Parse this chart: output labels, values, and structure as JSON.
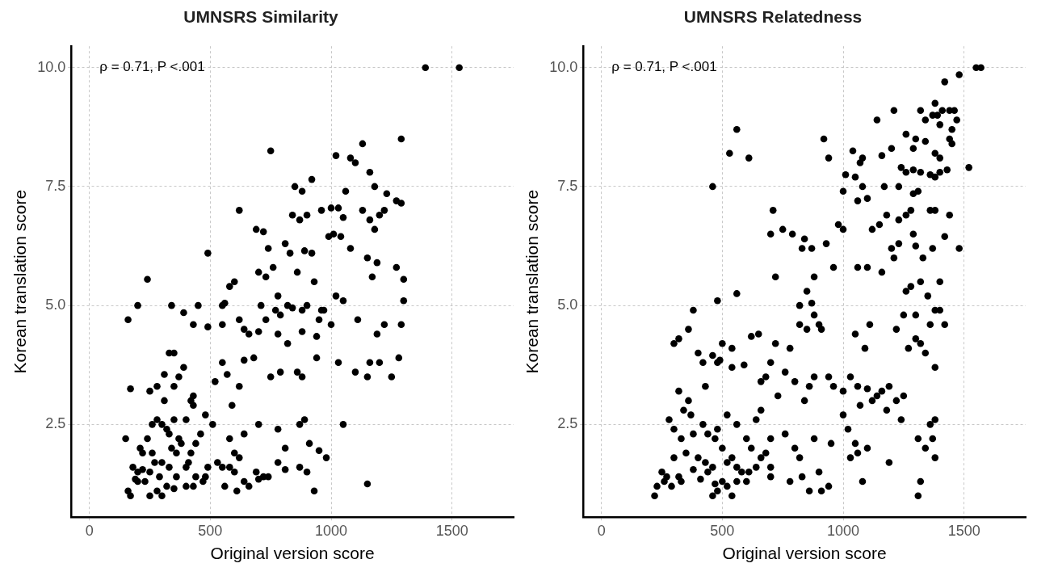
{
  "chart_data": [
    {
      "type": "scatter",
      "title": "UMNSRS Similarity",
      "xlabel": "Original version score",
      "ylabel": "Korean translation score",
      "annotations": [
        "ρ = 0.71, P <.001"
      ],
      "color": "#000000",
      "marker": "circle",
      "grid": true,
      "xlim": [
        -75,
        1755
      ],
      "ylim": [
        0.55,
        10.45
      ],
      "xticks": [
        0,
        500,
        1000,
        1500
      ],
      "yticks": [
        {
          "value": 2.5,
          "label": "2.5"
        },
        {
          "value": 5,
          "label": "5.0"
        },
        {
          "value": 7.5,
          "label": "7.5"
        },
        {
          "value": 10,
          "label": "10.0"
        }
      ],
      "x": [
        1390,
        1530,
        1290,
        1130,
        750,
        1020,
        1080,
        1100,
        1160,
        920,
        1060,
        1180,
        850,
        880,
        1230,
        1270,
        1290,
        1220,
        1130,
        1200,
        1160,
        1180,
        620,
        690,
        720,
        840,
        870,
        960,
        1000,
        1030,
        1050,
        1010,
        990,
        1040,
        900,
        810,
        830,
        890,
        920,
        490,
        1080,
        1150,
        1190,
        1170,
        1270,
        1300,
        580,
        600,
        700,
        730,
        760,
        740,
        860,
        930,
        780,
        820,
        840,
        880,
        900,
        960,
        970,
        1020,
        1050,
        1000,
        950,
        790,
        770,
        710,
        730,
        660,
        640,
        620,
        550,
        560,
        450,
        390,
        340,
        200,
        240,
        160,
        490,
        430,
        550,
        700,
        780,
        880,
        940,
        1110,
        1220,
        1290,
        1190,
        1300,
        1200,
        1250,
        1100,
        1150,
        1160,
        1280,
        1030,
        940,
        820,
        790,
        860,
        880,
        750,
        680,
        640,
        550,
        570,
        620,
        520,
        590,
        430,
        420,
        310,
        280,
        250,
        170,
        330,
        350,
        310,
        350,
        370,
        390,
        430,
        480,
        510,
        580,
        640,
        700,
        780,
        810,
        870,
        910,
        890,
        950,
        980,
        1050,
        870,
        900,
        600,
        620,
        530,
        550,
        580,
        600,
        690,
        720,
        780,
        810,
        700,
        740,
        490,
        480,
        470,
        560,
        610,
        640,
        660,
        400,
        430,
        930,
        1150,
        200,
        150,
        160,
        170,
        250,
        280,
        230,
        250,
        290,
        320,
        300,
        350,
        360,
        330,
        270,
        220,
        210,
        260,
        280,
        300,
        320,
        330,
        340,
        370,
        380,
        360,
        200,
        180,
        240,
        260,
        300,
        220,
        190,
        400,
        410,
        420,
        440,
        460,
        400,
        350,
        440
      ],
      "values": [
        10,
        10,
        8.5,
        8.4,
        8.25,
        8.15,
        8.1,
        8.0,
        7.8,
        7.65,
        7.4,
        7.5,
        7.5,
        7.4,
        7.35,
        7.2,
        7.15,
        7.0,
        7.0,
        6.9,
        6.8,
        6.6,
        7.0,
        6.6,
        6.55,
        6.9,
        6.8,
        7.0,
        7.05,
        7.05,
        6.85,
        6.5,
        6.45,
        6.45,
        6.9,
        6.3,
        6.1,
        6.15,
        6.1,
        6.1,
        6.2,
        6.0,
        5.9,
        5.6,
        5.8,
        5.55,
        5.4,
        5.5,
        5.7,
        5.6,
        5.8,
        6.2,
        5.7,
        5.5,
        5.2,
        5.0,
        4.95,
        4.9,
        5.0,
        4.9,
        4.9,
        5.2,
        5.1,
        4.6,
        4.7,
        4.8,
        4.9,
        5.0,
        4.7,
        4.4,
        4.5,
        4.7,
        5.0,
        5.05,
        5.0,
        4.85,
        5.0,
        5.0,
        5.55,
        4.7,
        4.55,
        4.6,
        4.6,
        4.45,
        4.4,
        4.45,
        4.35,
        4.7,
        4.6,
        4.6,
        4.4,
        5.1,
        3.8,
        3.5,
        3.6,
        3.5,
        3.8,
        3.9,
        3.8,
        3.9,
        4.2,
        3.6,
        3.6,
        3.5,
        3.5,
        3.9,
        3.85,
        3.8,
        3.55,
        3.3,
        3.4,
        2.9,
        3.1,
        3.0,
        3.0,
        3.3,
        3.2,
        3.25,
        4.0,
        4.0,
        3.55,
        3.3,
        3.5,
        3.7,
        2.9,
        2.7,
        2.5,
        2.2,
        2.3,
        2.5,
        2.4,
        2.0,
        2.5,
        2.1,
        2.6,
        1.95,
        1.8,
        2.5,
        1.6,
        1.5,
        1.9,
        1.8,
        1.7,
        1.6,
        1.6,
        1.5,
        1.5,
        1.4,
        1.7,
        1.55,
        1.35,
        1.4,
        1.6,
        1.4,
        1.3,
        1.2,
        1.1,
        1.3,
        1.2,
        1.2,
        1.2,
        1.1,
        1.25,
        1.3,
        2.2,
        1.1,
        1.0,
        1.0,
        1.1,
        1.3,
        1.5,
        1.4,
        1.2,
        1.0,
        1.15,
        1.4,
        1.6,
        1.7,
        1.9,
        2.0,
        2.5,
        2.6,
        2.5,
        2.4,
        2.3,
        2.0,
        2.2,
        2.1,
        1.9,
        1.5,
        1.6,
        2.2,
        1.9,
        1.7,
        1.55,
        1.35,
        1.6,
        1.7,
        1.9,
        2.1,
        2.3,
        2.6,
        2.6,
        1.4
      ]
    },
    {
      "type": "scatter",
      "title": "UMNSRS Relatedness",
      "xlabel": "Original version score",
      "ylabel": "Korean translation score",
      "annotations": [
        "ρ = 0.71, P <.001"
      ],
      "color": "#000000",
      "marker": "circle",
      "grid": true,
      "xlim": [
        -75,
        1755
      ],
      "ylim": [
        0.55,
        10.45
      ],
      "xticks": [
        0,
        500,
        1000,
        1500
      ],
      "yticks": [
        {
          "value": 2.5,
          "label": "2.5"
        },
        {
          "value": 5,
          "label": "5.0"
        },
        {
          "value": 7.5,
          "label": "7.5"
        },
        {
          "value": 10,
          "label": "10.0"
        }
      ],
      "x": [
        1550,
        1570,
        1480,
        1420,
        1380,
        1320,
        1370,
        1390,
        1410,
        1440,
        1460,
        1340,
        1400,
        1450,
        1440,
        1210,
        1140,
        1260,
        1300,
        1340,
        1290,
        1380,
        1400,
        1450,
        1470,
        1200,
        1160,
        1080,
        1070,
        1040,
        1010,
        1050,
        1240,
        1260,
        1290,
        1320,
        1360,
        1380,
        1400,
        1430,
        1520,
        1310,
        1290,
        1230,
        1170,
        1080,
        1100,
        1000,
        1060,
        1260,
        1280,
        1360,
        1380,
        1440,
        1230,
        1180,
        1150,
        1290,
        1230,
        1200,
        1370,
        1420,
        1300,
        1480,
        1120,
        1210,
        1330,
        1100,
        1060,
        1160,
        1280,
        1350,
        1260,
        1320,
        1400,
        1380,
        1300,
        1360,
        1250,
        1220,
        1110,
        1090,
        1050,
        1300,
        1320,
        1340,
        1380,
        1400,
        1420,
        1270,
        920,
        940,
        530,
        560,
        610,
        460,
        710,
        790,
        700,
        750,
        840,
        870,
        830,
        930,
        960,
        980,
        1000,
        720,
        560,
        480,
        380,
        500,
        540,
        620,
        650,
        590,
        700,
        720,
        780,
        760,
        820,
        850,
        900,
        910,
        880,
        870,
        880,
        850,
        820,
        300,
        320,
        360,
        400,
        420,
        460,
        490,
        430,
        480,
        540,
        660,
        680,
        730,
        800,
        840,
        860,
        880,
        940,
        960,
        1000,
        1030,
        1060,
        1100,
        1120,
        1140,
        1160,
        1070,
        1180,
        1220,
        1250,
        1240,
        1190,
        360,
        370,
        340,
        320,
        280,
        300,
        330,
        350,
        420,
        380,
        440,
        480,
        500,
        470,
        520,
        560,
        600,
        640,
        660,
        700,
        620,
        680,
        400,
        430,
        460,
        520,
        540,
        560,
        580,
        610,
        640,
        660,
        700,
        300,
        320,
        380,
        410,
        440,
        470,
        500,
        520,
        560,
        600,
        250,
        260,
        230,
        220,
        270,
        290,
        330,
        460,
        480,
        540,
        760,
        800,
        880,
        950,
        900,
        830,
        940,
        1050,
        1030,
        1080,
        1190,
        1060,
        1340,
        1370,
        1360,
        1380,
        1320,
        1310,
        1310,
        1380,
        860,
        910,
        780,
        820,
        700,
        1000,
        1020,
        1100
      ],
      "values": [
        10,
        10,
        9.85,
        9.7,
        9.25,
        9.1,
        9.0,
        9.0,
        9.1,
        9.1,
        9.1,
        8.9,
        8.8,
        8.7,
        8.5,
        9.1,
        8.9,
        8.6,
        8.5,
        8.45,
        8.3,
        8.2,
        8.1,
        8.4,
        8.9,
        8.3,
        8.15,
        8.1,
        8.0,
        8.25,
        7.75,
        7.7,
        7.9,
        7.8,
        7.85,
        7.8,
        7.75,
        7.7,
        7.8,
        7.85,
        7.9,
        7.4,
        7.35,
        7.5,
        7.5,
        7.5,
        7.25,
        7.4,
        7.2,
        6.9,
        7.0,
        7.0,
        7.0,
        6.9,
        6.8,
        6.9,
        6.7,
        6.5,
        6.3,
        6.2,
        6.2,
        6.45,
        6.25,
        6.2,
        6.6,
        6.0,
        6.0,
        5.8,
        5.8,
        5.7,
        5.4,
        5.2,
        5.3,
        5.5,
        5.5,
        4.9,
        4.8,
        4.6,
        4.8,
        4.5,
        4.6,
        4.1,
        4.4,
        4.3,
        4.2,
        4.0,
        3.7,
        4.9,
        4.6,
        4.1,
        8.5,
        8.1,
        8.2,
        8.7,
        8.1,
        7.5,
        7.0,
        6.5,
        6.5,
        6.6,
        6.4,
        6.2,
        6.2,
        6.3,
        5.8,
        6.7,
        6.6,
        5.6,
        5.25,
        5.1,
        4.9,
        4.2,
        4.1,
        4.35,
        4.4,
        3.75,
        3.8,
        4.2,
        4.1,
        3.6,
        4.6,
        4.5,
        4.6,
        4.5,
        4.8,
        5.05,
        5.6,
        5.3,
        5.0,
        4.2,
        4.3,
        4.5,
        4.0,
        3.8,
        3.95,
        3.85,
        3.3,
        3.8,
        3.7,
        3.4,
        3.5,
        3.1,
        3.4,
        3.0,
        3.3,
        3.5,
        3.5,
        3.3,
        3.2,
        3.5,
        3.3,
        3.25,
        3.0,
        3.1,
        3.2,
        2.9,
        2.8,
        3.0,
        3.1,
        2.6,
        3.3,
        3.0,
        2.7,
        2.8,
        3.2,
        2.6,
        2.4,
        2.2,
        1.9,
        2.5,
        2.3,
        2.3,
        2.4,
        2.0,
        2.2,
        2.7,
        2.5,
        2.2,
        2.6,
        2.8,
        2.2,
        2.0,
        1.9,
        1.8,
        1.7,
        1.6,
        1.7,
        1.8,
        1.6,
        1.5,
        1.5,
        1.6,
        1.8,
        1.6,
        1.8,
        1.4,
        1.55,
        1.35,
        1.5,
        1.25,
        1.3,
        1.2,
        1.3,
        1.3,
        1.5,
        1.3,
        1.2,
        1.0,
        1.4,
        1.2,
        1.3,
        1.0,
        1.1,
        1.0,
        2.3,
        2.0,
        2.2,
        2.1,
        1.5,
        1.4,
        1.2,
        2.1,
        1.8,
        1.3,
        1.7,
        1.9,
        2.0,
        2.2,
        2.5,
        2.6,
        1.3,
        1.0,
        2.2,
        1.8,
        1.1,
        1.1,
        1.3,
        1.8,
        1.4,
        2.7,
        2.4,
        2.0
      ]
    }
  ]
}
